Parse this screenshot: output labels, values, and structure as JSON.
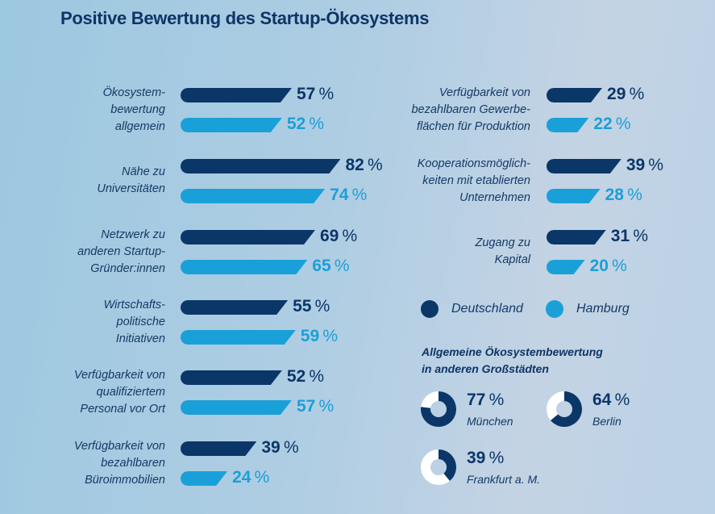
{
  "title": "Positive Bewertung des Startup-Ökosystems",
  "colors": {
    "deutschland": "#0b3668",
    "hamburg": "#1aa0d8",
    "donut_rest": "#ffffff"
  },
  "legend": [
    {
      "name": "Deutschland",
      "color": "#0b3668"
    },
    {
      "name": "Hamburg",
      "color": "#1aa0d8"
    }
  ],
  "subheading": [
    "Allgemeine Ökosystembewertung",
    "in anderen Großstädten"
  ],
  "chart_data": [
    {
      "type": "bar",
      "orientation": "horizontal",
      "title": "Positive Bewertung des Startup-Ökosystems",
      "unit": "%",
      "series_names": [
        "Deutschland",
        "Hamburg"
      ],
      "xlim": [
        0,
        100
      ],
      "grid": false,
      "legend_position": "right-middle",
      "categories": [
        {
          "label": [
            "Ökosystem-",
            "bewertung",
            "allgemein"
          ],
          "column": "left",
          "deutschland": 57,
          "hamburg": 52
        },
        {
          "label": [
            "Nähe zu",
            "Universitäten"
          ],
          "column": "left",
          "deutschland": 82,
          "hamburg": 74
        },
        {
          "label": [
            "Netzwerk zu",
            "anderen Startup-",
            "Gründer:innen"
          ],
          "column": "left",
          "deutschland": 69,
          "hamburg": 65
        },
        {
          "label": [
            "Wirtschafts-",
            "politische",
            "Initiativen"
          ],
          "column": "left",
          "deutschland": 55,
          "hamburg": 59
        },
        {
          "label": [
            "Verfügbarkeit von",
            "qualifiziertem",
            "Personal vor Ort"
          ],
          "column": "left",
          "deutschland": 52,
          "hamburg": 57
        },
        {
          "label": [
            "Verfügbarkeit von",
            "bezahlbaren",
            "Büroimmobilien"
          ],
          "column": "left",
          "deutschland": 39,
          "hamburg": 24
        },
        {
          "label": [
            "Verfügbarkeit von",
            "bezahlbaren Gewerbe-",
            "flächen für Produktion"
          ],
          "column": "right",
          "deutschland": 29,
          "hamburg": 22
        },
        {
          "label": [
            "Kooperationsmöglich-",
            "keiten mit etablierten",
            "Unternehmen"
          ],
          "column": "right",
          "deutschland": 39,
          "hamburg": 28
        },
        {
          "label": [
            "Zugang zu",
            "Kapital"
          ],
          "column": "right",
          "deutschland": 31,
          "hamburg": 20
        }
      ]
    },
    {
      "type": "pie",
      "variant": "donut",
      "title": "Allgemeine Ökosystembewertung in anderen Großstädten",
      "unit": "%",
      "values": [
        {
          "city": "München",
          "value": 77
        },
        {
          "city": "Berlin",
          "value": 64
        },
        {
          "city": "Frankfurt a. M.",
          "value": 39
        }
      ]
    }
  ]
}
